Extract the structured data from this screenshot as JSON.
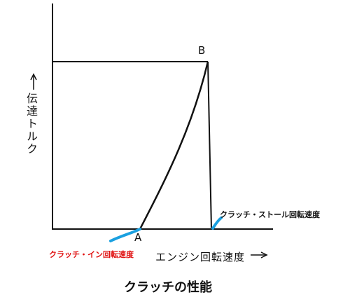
{
  "diagram": {
    "title": "クラッチの性能",
    "y_axis_label": "伝達トルク",
    "x_axis_label": "エンジン回転速度",
    "points": {
      "a": "A",
      "b": "B"
    },
    "annotations": {
      "clutch_in": "クラッチ・イン回転速度",
      "clutch_stall": "クラッチ・ストール回転速度"
    }
  }
}
